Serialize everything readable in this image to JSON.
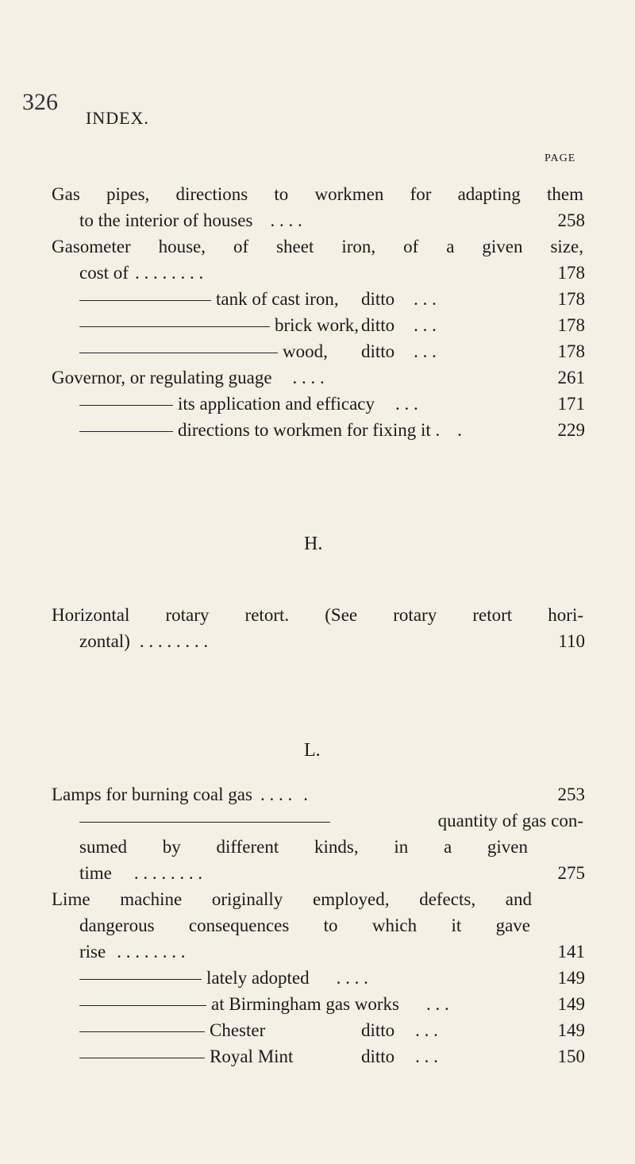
{
  "header": {
    "page_number": "326",
    "running_title": "INDEX.",
    "column_label": "PAGE"
  },
  "sections": {
    "h": "H.",
    "l": "L."
  },
  "entries": {
    "g1a": "Gas pipes, directions to workmen for adapting them",
    "g1b": "to the interior of houses",
    "g1p": "258",
    "g2a": "Gasometer house, of sheet iron, of a given size,",
    "g2b": "cost of",
    "g2p": "178",
    "g3": "tank of cast iron,",
    "g3d": "ditto",
    "g3p": "178",
    "g4": "brick work,",
    "g4d": "ditto",
    "g4p": "178",
    "g5": "wood,",
    "g5d": "ditto",
    "g5p": "178",
    "g6": "Governor, or regulating guage",
    "g6p": "261",
    "g7": "its application and efficacy",
    "g7p": "171",
    "g8": "directions to workmen for fixing it .",
    "g8p": "229",
    "h1a": "Horizontal rotary retort. (See rotary retort hori-",
    "h1b": "zontal)",
    "h1p": "110",
    "l1": "Lamps for burning coal gas",
    "l1p": "253",
    "l2a": "quantity of gas con-",
    "l2b": "sumed by different kinds, in a given",
    "l2c": "time",
    "l2p": "275",
    "l3a": "Lime machine originally employed, defects, and",
    "l3b": "dangerous consequences to which it gave",
    "l3c": "rise",
    "l3p": "141",
    "l4": "lately adopted",
    "l4p": "149",
    "l5": "at Birmingham gas works",
    "l5p": "149",
    "l6": "Chester",
    "l6d": "ditto",
    "l6p": "149",
    "l7": "Royal Mint",
    "l7d": "ditto",
    "l7p": "150"
  },
  "leaders": {
    "short": ".   .   .   .",
    "mid": ".   .   .",
    "long": ".   .   .   .   .   .   .   .",
    "end": "."
  }
}
